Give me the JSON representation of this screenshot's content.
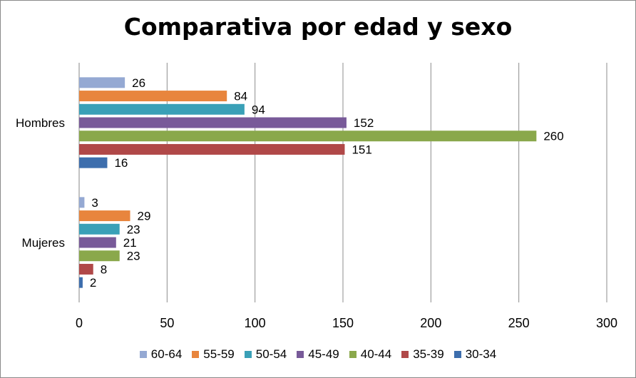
{
  "chart_data": {
    "type": "bar",
    "orientation": "horizontal",
    "title": "Comparativa por edad y sexo",
    "categories": [
      "Hombres",
      "Mujeres"
    ],
    "series": [
      {
        "name": "60-64",
        "color": "#95a9d3",
        "values": [
          26,
          3
        ]
      },
      {
        "name": "55-59",
        "color": "#e8853d",
        "values": [
          84,
          29
        ]
      },
      {
        "name": "50-54",
        "color": "#3aa0b7",
        "values": [
          94,
          23
        ]
      },
      {
        "name": "45-49",
        "color": "#785a99",
        "values": [
          152,
          21
        ]
      },
      {
        "name": "40-44",
        "color": "#8aa84b",
        "values": [
          260,
          23
        ]
      },
      {
        "name": "35-39",
        "color": "#b04848",
        "values": [
          151,
          8
        ]
      },
      {
        "name": "30-34",
        "color": "#3d6ead",
        "values": [
          16,
          2
        ]
      }
    ],
    "xlim": [
      0,
      300
    ],
    "xticks": [
      0,
      50,
      100,
      150,
      200,
      250,
      300
    ],
    "grid": true,
    "legend_position": "bottom",
    "data_labels": true
  }
}
